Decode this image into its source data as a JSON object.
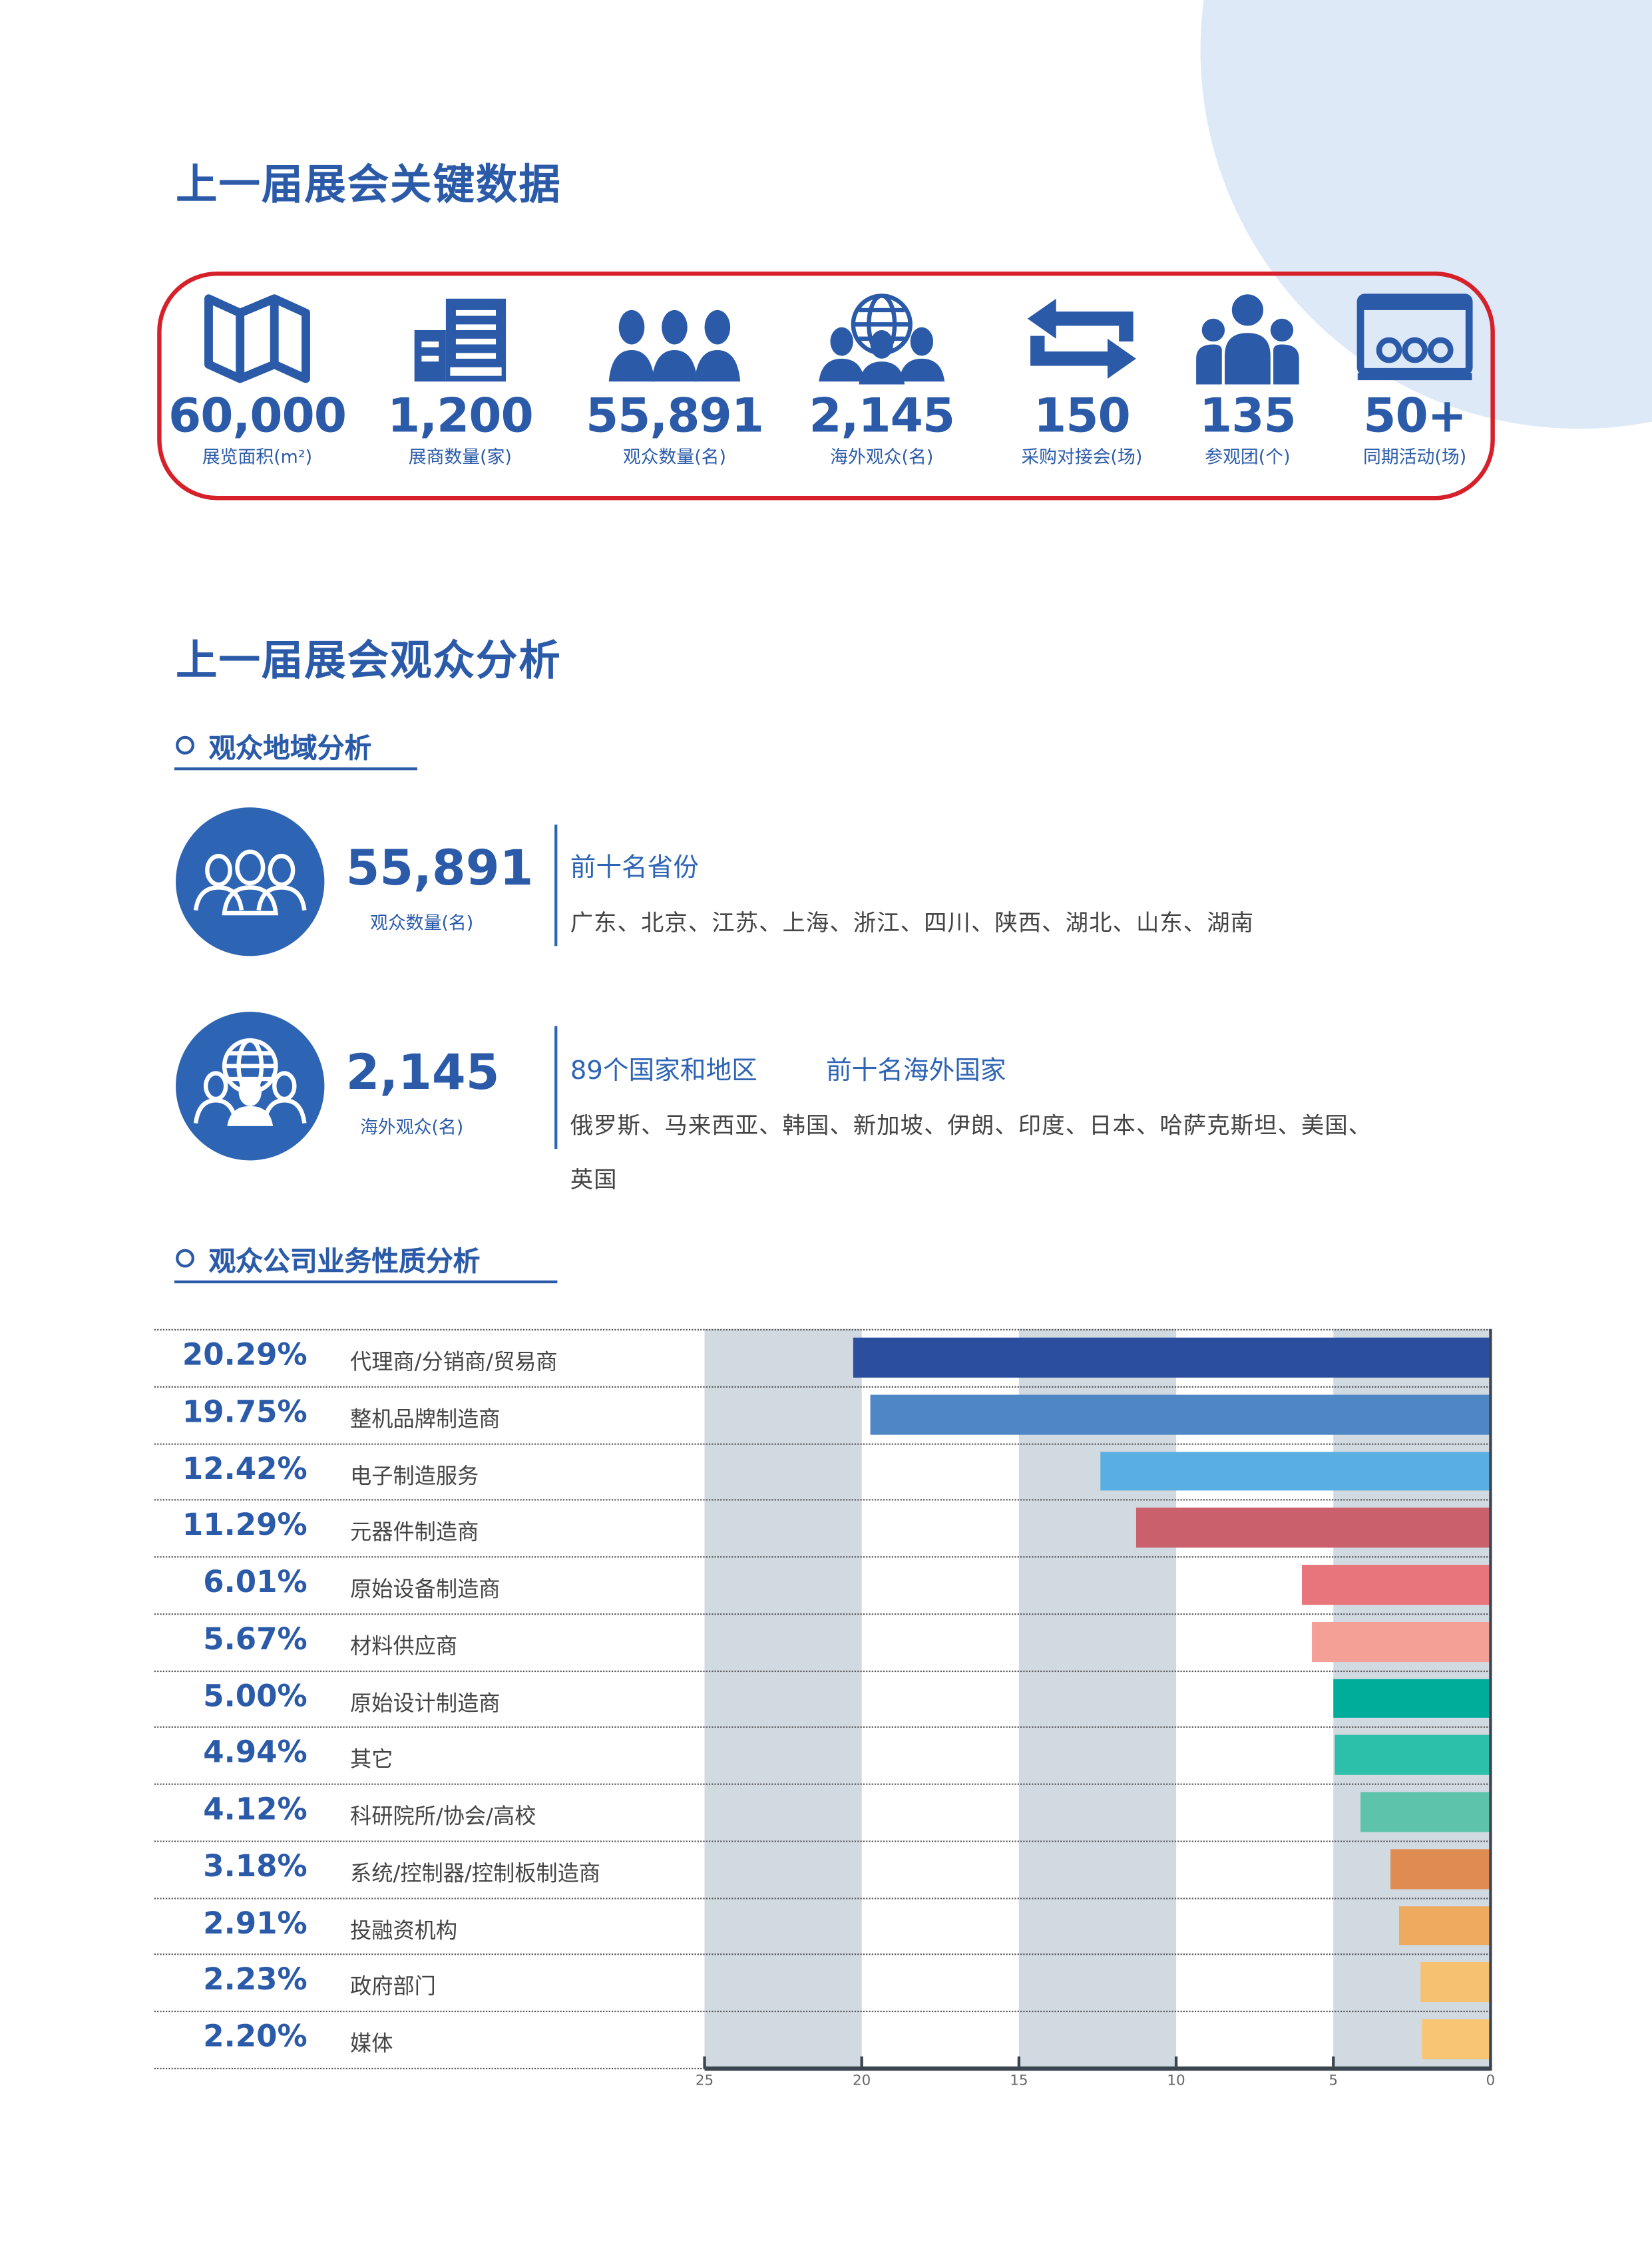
{
  "section1": {
    "title": "上一届展会关键数据",
    "stats": [
      {
        "icon": "map-icon",
        "value": "60,000",
        "label": "展览面积(m²)"
      },
      {
        "icon": "building-icon",
        "value": "1,200",
        "label": "展商数量(家)"
      },
      {
        "icon": "people-group-icon",
        "value": "55,891",
        "label": "观众数量(名)"
      },
      {
        "icon": "globe-people-icon",
        "value": "2,145",
        "label": "海外观众(名)"
      },
      {
        "icon": "exchange-arrows-icon",
        "value": "150",
        "label": "采购对接会(场)"
      },
      {
        "icon": "delegation-icon",
        "value": "135",
        "label": "参观团(个)"
      },
      {
        "icon": "presentation-audience-icon",
        "value": "50+",
        "label": "同期活动(场)"
      }
    ]
  },
  "section2": {
    "title": "上一届展会观众分析",
    "region": {
      "subtitle": "观众地域分析",
      "domestic": {
        "value": "55,891",
        "label": "观众数量(名)",
        "heading": "前十名省份",
        "list": "广东、北京、江苏、上海、浙江、四川、陕西、湖北、山东、湖南"
      },
      "overseas": {
        "value": "2,145",
        "label": "海外观众(名)",
        "heading1": "89个国家和地区",
        "heading2": "前十名海外国家",
        "list_line1": "俄罗斯、马来西亚、韩国、新加坡、伊朗、印度、日本、哈萨克斯坦、美国、",
        "list_line2": "英国"
      }
    },
    "business": {
      "subtitle": "观众公司业务性质分析"
    }
  },
  "chart_data": {
    "type": "bar",
    "orientation": "horizontal",
    "x_reversed": true,
    "xlim": [
      0,
      25
    ],
    "ticks": [
      "25",
      "20",
      "15",
      "10",
      "5",
      "0"
    ],
    "categories": [
      "代理商/分销商/贸易商",
      "整机品牌制造商",
      "电子制造服务",
      "元器件制造商",
      "原始设备制造商",
      "材料供应商",
      "原始设计制造商",
      "其它",
      "科研院所/协会/高校",
      "系统/控制器/控制板制造商",
      "投融资机构",
      "政府部门",
      "媒体"
    ],
    "values": [
      20.29,
      19.75,
      12.42,
      11.29,
      6.01,
      5.67,
      5.0,
      4.94,
      4.12,
      3.18,
      2.91,
      2.23,
      2.2
    ],
    "labels": [
      "20.29%",
      "19.75%",
      "12.42%",
      "11.29%",
      "6.01%",
      "5.67%",
      "5.00%",
      "4.94%",
      "4.12%",
      "3.18%",
      "2.91%",
      "2.23%",
      "2.20%"
    ],
    "colors": [
      "#2b4f9e",
      "#4f86c6",
      "#59aee2",
      "#c9606b",
      "#e8747c",
      "#f4a096",
      "#00ad9b",
      "#2cbfa9",
      "#5dc4aa",
      "#e08b51",
      "#eeaa5e",
      "#f6c170",
      "#f8c672"
    ]
  }
}
